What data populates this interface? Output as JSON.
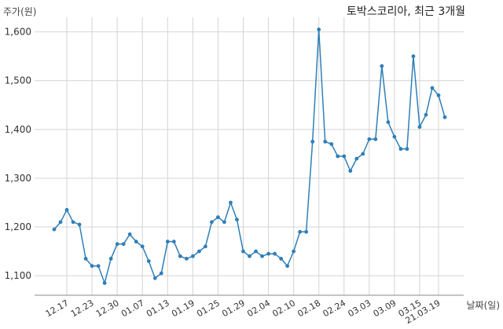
{
  "chart_data": {
    "type": "line",
    "title": "토박스코리아, 최근 3개월",
    "ylabel": "주가(원)",
    "xlabel": "날짜(일)",
    "ylim": [
      1060,
      1630
    ],
    "yticks": [
      1100,
      1200,
      1300,
      1400,
      1500,
      1600
    ],
    "ytick_labels": [
      "1,100",
      "1,200",
      "1,300",
      "1,400",
      "1,500",
      "1,600"
    ],
    "xticks": [
      {
        "label": "12.17",
        "index": 2
      },
      {
        "label": "12.23",
        "index": 6
      },
      {
        "label": "12.30",
        "index": 10
      },
      {
        "label": "01.07",
        "index": 14
      },
      {
        "label": "01.13",
        "index": 18
      },
      {
        "label": "01.19",
        "index": 22
      },
      {
        "label": "01.25",
        "index": 26
      },
      {
        "label": "01.29",
        "index": 30
      },
      {
        "label": "02.04",
        "index": 34
      },
      {
        "label": "02.10",
        "index": 38
      },
      {
        "label": "02.18",
        "index": 42
      },
      {
        "label": "02.24",
        "index": 46
      },
      {
        "label": "03.03",
        "index": 50
      },
      {
        "label": "03.09",
        "index": 54
      },
      {
        "label": "03.15",
        "index": 58
      },
      {
        "label": "21.03.19",
        "index": 61
      }
    ],
    "grid": true,
    "color": "#2f7fb8",
    "series": [
      {
        "values": [
          1195,
          1210,
          1235,
          1210,
          1205,
          1135,
          1120,
          1120,
          1085,
          1135,
          1165,
          1165,
          1185,
          1170,
          1160,
          1130,
          1095,
          1105,
          1170,
          1170,
          1140,
          1135,
          1140,
          1150,
          1160,
          1210,
          1220,
          1210,
          1250,
          1215,
          1150,
          1140,
          1150,
          1140,
          1145,
          1145,
          1135,
          1120,
          1150,
          1190,
          1190,
          1375,
          1605,
          1375,
          1370,
          1345,
          1345,
          1315,
          1340,
          1350,
          1380,
          1380,
          1530,
          1415,
          1385,
          1360,
          1360,
          1550,
          1405,
          1430,
          1485,
          1470,
          1425
        ]
      }
    ]
  }
}
